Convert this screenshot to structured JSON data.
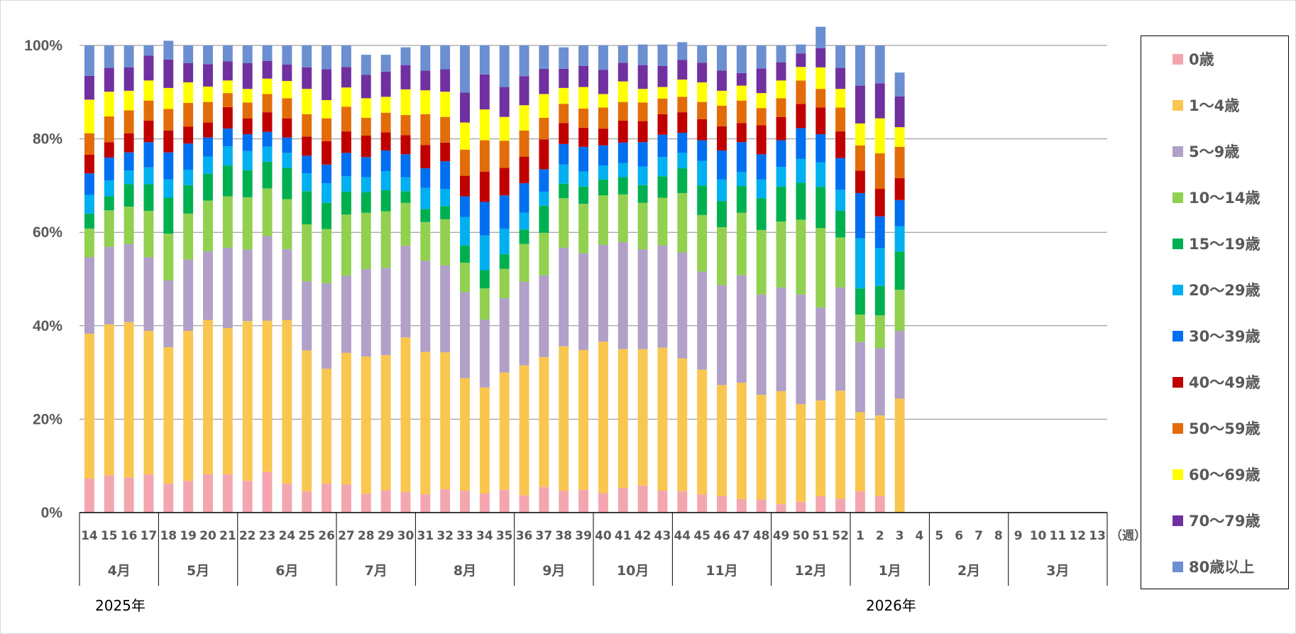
{
  "chart_data": {
    "type": "bar",
    "stacked": "percent",
    "title": "",
    "xlabel": "",
    "ylabel": "",
    "ylim": [
      0,
      100
    ],
    "yticks": [
      "0%",
      "20%",
      "40%",
      "60%",
      "80%",
      "100%"
    ],
    "x_unit_label": "（週）",
    "weeks": [
      "14",
      "15",
      "16",
      "17",
      "18",
      "19",
      "20",
      "21",
      "22",
      "23",
      "24",
      "25",
      "26",
      "27",
      "28",
      "29",
      "30",
      "31",
      "32",
      "33",
      "34",
      "35",
      "36",
      "37",
      "38",
      "39",
      "40",
      "41",
      "42",
      "43",
      "44",
      "45",
      "46",
      "47",
      "48",
      "49",
      "50",
      "51",
      "52",
      "1",
      "2",
      "3",
      "4",
      "5",
      "6",
      "7",
      "8",
      "9",
      "10",
      "11",
      "12",
      "13"
    ],
    "months": [
      {
        "label": "4月",
        "weeks": 4
      },
      {
        "label": "5月",
        "weeks": 4
      },
      {
        "label": "6月",
        "weeks": 5
      },
      {
        "label": "7月",
        "weeks": 4
      },
      {
        "label": "8月",
        "weeks": 5
      },
      {
        "label": "9月",
        "weeks": 4
      },
      {
        "label": "10月",
        "weeks": 4
      },
      {
        "label": "11月",
        "weeks": 5
      },
      {
        "label": "12月",
        "weeks": 4
      },
      {
        "label": "1月",
        "weeks": 4
      },
      {
        "label": "2月",
        "weeks": 4
      },
      {
        "label": "3月",
        "weeks": 5
      }
    ],
    "years": [
      {
        "label": "2025年",
        "at_week_index": 0
      },
      {
        "label": "2026年",
        "at_week_index": 39
      }
    ],
    "grid": true,
    "legend_position": "right",
    "series": [
      {
        "name": "0歳",
        "color": "#F4A6B0",
        "values": [
          7.3,
          8.0,
          7.5,
          8.2,
          6.2,
          6.8,
          8.2,
          8.2,
          6.8,
          8.7,
          6.2,
          4.6,
          6.2,
          6.0,
          4.0,
          4.8,
          4.4,
          3.9,
          5.0,
          4.7,
          4.1,
          4.9,
          3.7,
          5.5,
          4.7,
          4.9,
          4.2,
          5.3,
          5.8,
          4.7,
          4.6,
          3.9,
          3.5,
          2.9,
          2.8,
          1.8,
          2.3,
          3.5,
          3.0,
          4.6,
          3.5,
          0,
          0,
          0,
          0,
          0,
          0,
          0,
          0,
          0,
          0,
          0
        ]
      },
      {
        "name": "1～4歳",
        "color": "#F9C74F",
        "values": [
          31.0,
          32.3,
          33.3,
          30.7,
          29.2,
          32.1,
          33.0,
          31.3,
          34.2,
          32.4,
          35.0,
          30.1,
          24.6,
          28.2,
          29.4,
          28.9,
          33.1,
          30.5,
          29.3,
          24.1,
          22.7,
          25.1,
          27.8,
          27.8,
          30.9,
          29.9,
          32.4,
          29.7,
          29.2,
          30.6,
          28.4,
          26.7,
          23.8,
          24.9,
          22.4,
          24.2,
          20.9,
          20.5,
          23.1,
          16.9,
          17.3,
          24.4,
          0,
          0,
          0,
          0,
          0,
          0,
          0,
          0,
          0,
          0
        ]
      },
      {
        "name": "5～9歳",
        "color": "#B1A0C7",
        "values": [
          16.4,
          16.6,
          16.7,
          15.8,
          14.3,
          15.3,
          14.7,
          17.2,
          15.3,
          18.1,
          15.2,
          14.8,
          18.3,
          16.5,
          18.7,
          18.7,
          19.6,
          19.5,
          18.6,
          18.4,
          14.5,
          15.9,
          17.9,
          17.5,
          21.1,
          20.7,
          20.7,
          22.9,
          21.3,
          21.9,
          22.7,
          21.0,
          21.4,
          23.0,
          21.5,
          22.2,
          23.5,
          19.9,
          22.1,
          15.0,
          14.4,
          14.5,
          0,
          0,
          0,
          0,
          0,
          0,
          0,
          0,
          0,
          0
        ]
      },
      {
        "name": "10～14歳",
        "color": "#92D050",
        "values": [
          6.1,
          7.8,
          8.0,
          9.9,
          10.0,
          9.8,
          10.9,
          11.0,
          11.2,
          10.2,
          10.7,
          12.2,
          11.6,
          13.1,
          12.1,
          12.1,
          9.2,
          8.3,
          9.9,
          6.3,
          6.7,
          6.3,
          8.1,
          9.1,
          10.6,
          10.6,
          10.6,
          10.2,
          10.0,
          10.2,
          12.7,
          12.1,
          12.4,
          13.4,
          13.8,
          14.1,
          16.0,
          17.0,
          10.7,
          5.9,
          7.0,
          8.8,
          0,
          0,
          0,
          0,
          0,
          0,
          0,
          0,
          0,
          0
        ]
      },
      {
        "name": "15～19歳",
        "color": "#00B050",
        "values": [
          3.2,
          3.0,
          4.8,
          5.7,
          7.7,
          6.1,
          5.7,
          6.6,
          5.8,
          5.7,
          6.7,
          7.1,
          5.6,
          4.9,
          4.4,
          4.5,
          2.5,
          2.8,
          2.8,
          3.7,
          3.9,
          3.1,
          3.1,
          5.8,
          3.1,
          3.7,
          3.4,
          3.7,
          3.8,
          4.6,
          5.3,
          6.3,
          5.6,
          5.7,
          6.8,
          7.5,
          7.9,
          8.8,
          5.7,
          5.6,
          6.3,
          8.2,
          0,
          0,
          0,
          0,
          0,
          0,
          0,
          0,
          0,
          0
        ]
      },
      {
        "name": "20～29歳",
        "color": "#00B0F0",
        "values": [
          4.0,
          3.4,
          2.9,
          3.6,
          3.9,
          3.3,
          3.7,
          4.1,
          4.1,
          3.2,
          3.2,
          3.8,
          4.2,
          3.3,
          3.2,
          4.1,
          3.0,
          4.5,
          3.7,
          6.1,
          7.4,
          5.5,
          3.6,
          3.0,
          4.1,
          3.2,
          3.0,
          3.0,
          4.0,
          4.1,
          3.3,
          5.3,
          4.6,
          3.0,
          4.0,
          4.2,
          5.1,
          5.3,
          4.5,
          10.7,
          8.1,
          5.4,
          0,
          0,
          0,
          0,
          0,
          0,
          0,
          0,
          0,
          0
        ]
      },
      {
        "name": "30～39歳",
        "color": "#0070F0",
        "values": [
          4.6,
          4.9,
          3.9,
          5.4,
          5.8,
          5.6,
          4.1,
          3.8,
          3.6,
          3.2,
          3.3,
          3.8,
          4.0,
          5.0,
          4.3,
          4.4,
          4.9,
          4.2,
          5.9,
          4.4,
          7.2,
          7.1,
          6.3,
          4.8,
          4.4,
          5.3,
          4.3,
          4.4,
          5.2,
          4.8,
          4.3,
          4.4,
          6.2,
          6.4,
          5.4,
          5.7,
          6.6,
          6.0,
          6.8,
          9.7,
          6.8,
          5.6,
          0,
          0,
          0,
          0,
          0,
          0,
          0,
          0,
          0,
          0
        ]
      },
      {
        "name": "40～49歳",
        "color": "#C00000",
        "values": [
          4.0,
          3.3,
          4.1,
          4.6,
          4.7,
          3.6,
          3.2,
          4.6,
          3.4,
          4.2,
          4.1,
          4.1,
          5.0,
          4.6,
          4.6,
          3.9,
          4.1,
          5.0,
          4.0,
          4.4,
          6.5,
          5.9,
          5.7,
          6.4,
          4.5,
          4.1,
          3.6,
          4.7,
          4.5,
          4.4,
          4.4,
          4.5,
          5.2,
          4.1,
          6.2,
          5.0,
          5.2,
          5.7,
          5.7,
          4.8,
          5.9,
          4.7,
          0,
          0,
          0,
          0,
          0,
          0,
          0,
          0,
          0,
          0
        ]
      },
      {
        "name": "50～59歳",
        "color": "#E36C0A",
        "values": [
          4.6,
          5.5,
          4.9,
          4.3,
          4.6,
          5.1,
          4.4,
          3.0,
          3.4,
          3.9,
          4.3,
          4.8,
          4.9,
          5.3,
          3.8,
          4.2,
          4.3,
          6.6,
          5.5,
          5.6,
          6.7,
          5.8,
          5.6,
          4.6,
          4.1,
          4.1,
          4.5,
          4.0,
          4.0,
          3.3,
          3.3,
          3.7,
          4.4,
          4.8,
          3.7,
          4.0,
          5.0,
          4.0,
          5.1,
          5.4,
          7.6,
          6.7,
          0,
          0,
          0,
          0,
          0,
          0,
          0,
          0,
          0,
          0
        ]
      },
      {
        "name": "60～69歳",
        "color": "#FFFF00",
        "values": [
          7.2,
          5.3,
          4.2,
          4.3,
          4.5,
          4.4,
          3.3,
          2.7,
          2.9,
          3.3,
          3.7,
          5.4,
          3.9,
          4.1,
          4.2,
          3.4,
          5.5,
          5.1,
          5.4,
          5.8,
          6.6,
          5.1,
          5.4,
          5.1,
          3.4,
          4.6,
          2.9,
          4.4,
          2.9,
          2.5,
          3.7,
          4.2,
          3.2,
          3.2,
          3.2,
          3.8,
          2.9,
          4.6,
          4.0,
          4.7,
          7.5,
          4.2,
          0,
          0,
          0,
          0,
          0,
          0,
          0,
          0,
          0,
          0
        ]
      },
      {
        "name": "70～79歳",
        "color": "#7030A0",
        "values": [
          5.1,
          5.1,
          5.0,
          5.3,
          6.1,
          4.1,
          4.8,
          4.1,
          5.5,
          3.8,
          3.5,
          4.6,
          6.6,
          4.4,
          5.0,
          5.4,
          5.2,
          4.2,
          4.8,
          6.4,
          7.5,
          6.4,
          6.2,
          5.4,
          4.1,
          4.5,
          5.2,
          4.0,
          5.1,
          4.5,
          4.2,
          4.2,
          4.3,
          2.7,
          5.3,
          3.9,
          2.9,
          4.1,
          4.5,
          8.1,
          7.5,
          6.6,
          0,
          0,
          0,
          0,
          0,
          0,
          0,
          0,
          0,
          0
        ]
      },
      {
        "name": "80歳以上",
        "color": "#6B8FD0",
        "values": [
          6.5,
          4.8,
          4.7,
          2.2,
          4.0,
          3.8,
          4.0,
          3.4,
          3.8,
          3.3,
          4.1,
          4.7,
          5.1,
          4.6,
          4.3,
          3.6,
          3.8,
          5.4,
          5.1,
          10.1,
          6.2,
          8.9,
          6.6,
          5.0,
          4.6,
          4.4,
          5.2,
          3.7,
          4.4,
          4.6,
          3.8,
          3.7,
          5.4,
          5.9,
          4.9,
          3.6,
          1.9,
          4.6,
          4.8,
          8.6,
          8.1,
          5.1,
          0,
          0,
          0,
          0,
          0,
          0,
          0,
          0,
          0,
          0
        ]
      }
    ]
  }
}
